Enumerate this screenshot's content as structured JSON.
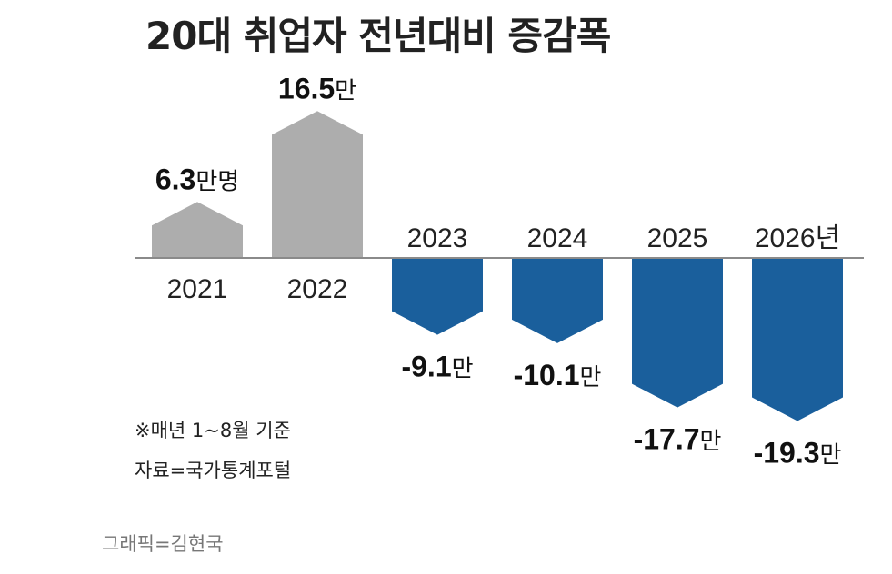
{
  "chart_data": {
    "type": "bar",
    "title": "20대 취업자 전년대비 증감폭",
    "categories": [
      "2021",
      "2022",
      "2023",
      "2024",
      "2025",
      "2026년"
    ],
    "values": [
      6.3,
      16.5,
      -9.1,
      -10.1,
      -17.7,
      -19.3
    ],
    "value_labels": [
      {
        "num": "6.3",
        "unit": "만명"
      },
      {
        "num": "16.5",
        "unit": "만"
      },
      {
        "num": "-9.1",
        "unit": "만"
      },
      {
        "num": "-10.1",
        "unit": "만"
      },
      {
        "num": "-17.7",
        "unit": "만"
      },
      {
        "num": "-19.3",
        "unit": "만"
      }
    ],
    "grid": false,
    "legend": "none",
    "colors": {
      "positive": "#adadad",
      "negative": "#1a5f9c",
      "axis": "#8a8a8a"
    }
  },
  "notes": {
    "basis": "※매년 1~8월 기준",
    "source": "자료=국가통계포털"
  },
  "credit": "그래픽=김현국"
}
